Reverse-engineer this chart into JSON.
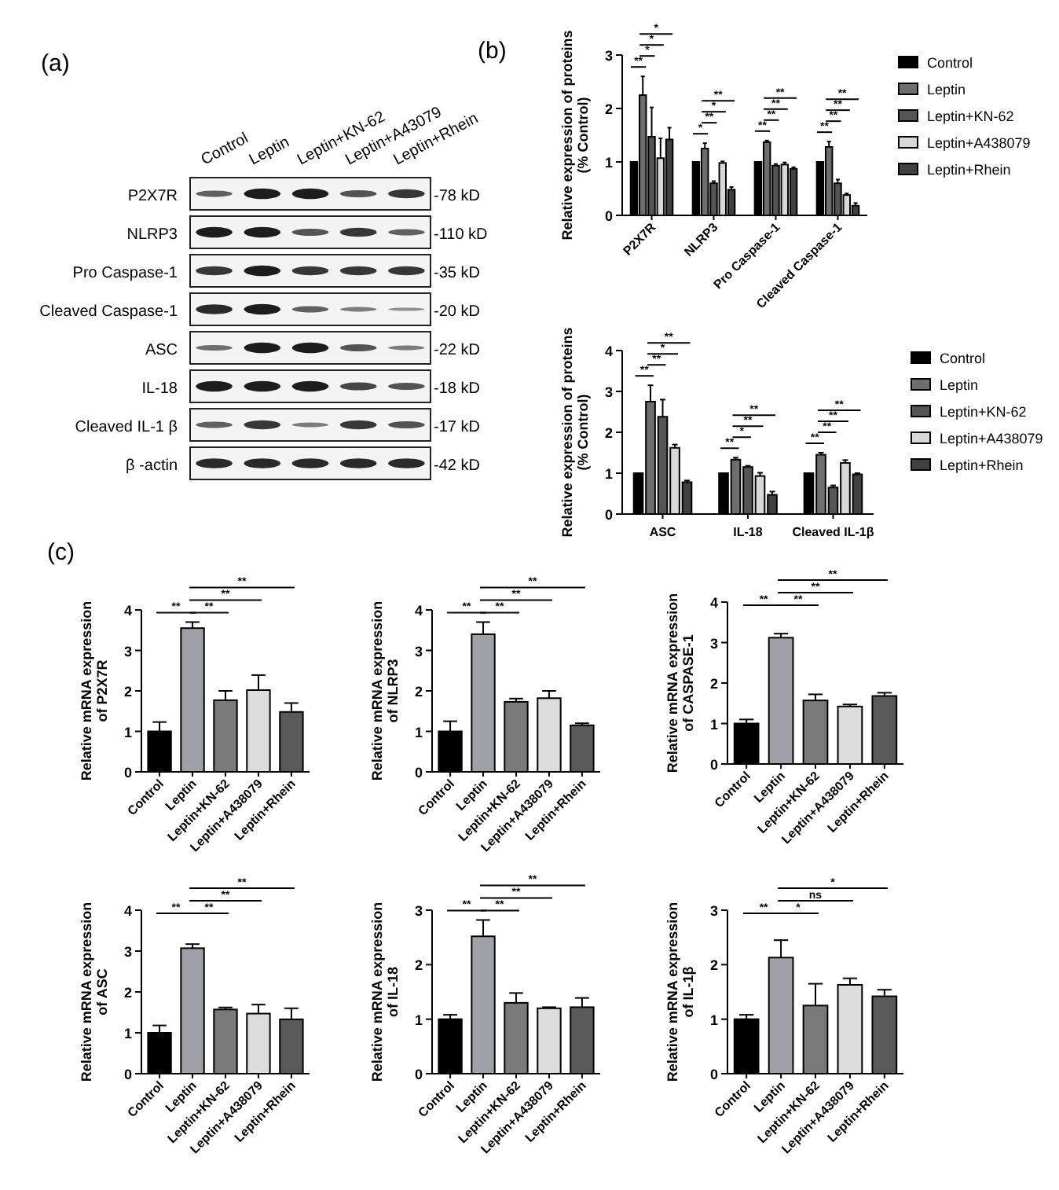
{
  "chart_data": [
    {
      "type": "other",
      "title": "(a)",
      "categories": [
        "Control",
        "Leptin",
        "Leptin+KN-62",
        "Leptin+A43079",
        "Leptin+Rhein"
      ],
      "y_categories": [
        "P2X7R",
        "NLRP3",
        "Pro Caspase-1",
        "Cleaved Caspase-1",
        "ASC",
        "IL-18",
        "Cleaved IL-1 β",
        "β -actin"
      ],
      "y2_categories": [
        "-78 kD",
        "-110 kD",
        "-35 kD",
        "-20 kD",
        "-22 kD",
        "-18 kD",
        "-17 kD",
        "-42 kD"
      ]
    },
    {
      "type": "bar",
      "title": "(b)",
      "ylabel": "Relative expression of proteins\n(% Control)",
      "categories": [
        "P2X7R",
        "NLRP3",
        "Pro Caspase-1",
        "Cleaved  Caspase-1"
      ],
      "ylim": [
        0,
        3
      ],
      "yticks": [
        0,
        1,
        2,
        3
      ],
      "legend": "right",
      "series": [
        {
          "name": "Control",
          "color": "#000000",
          "values": [
            1,
            1,
            1,
            1
          ]
        },
        {
          "name": "Leptin",
          "color": "#6e6e6e",
          "values": [
            2.25,
            1.25,
            1.37,
            1.28
          ],
          "errors": [
            0.35,
            0.1,
            0.03,
            0.1
          ]
        },
        {
          "name": "Leptin+KN-62",
          "color": "#555555",
          "values": [
            1.47,
            0.6,
            0.93,
            0.6
          ],
          "errors": [
            0.55,
            0.04,
            0.03,
            0.07
          ]
        },
        {
          "name": "Leptin+A438079",
          "color": "#d8d8d8",
          "values": [
            1.07,
            0.98,
            0.95,
            0.38
          ],
          "errors": [
            0.37,
            0.03,
            0.04,
            0.03
          ]
        },
        {
          "name": "Leptin+Rhein",
          "color": "#404040",
          "values": [
            1.42,
            0.48,
            0.87,
            0.18
          ],
          "errors": [
            0.22,
            0.05,
            0.03,
            0.05
          ]
        }
      ],
      "annotations": [
        "**",
        "*",
        "*",
        "*",
        "*",
        "**",
        "*",
        "**",
        "**",
        "**",
        "**",
        "**",
        "**",
        "**",
        "**",
        "**"
      ]
    },
    {
      "type": "bar",
      "ylabel": "Relative expression of proteins\n(% Control)",
      "categories": [
        "ASC",
        "IL-18",
        "Cleaved IL-1β"
      ],
      "ylim": [
        0,
        4
      ],
      "yticks": [
        0,
        1,
        2,
        3,
        4
      ],
      "legend": "right",
      "series": [
        {
          "name": "Control",
          "color": "#000000",
          "values": [
            1,
            1,
            1
          ]
        },
        {
          "name": "Leptin",
          "color": "#6e6e6e",
          "values": [
            2.75,
            1.33,
            1.45
          ],
          "errors": [
            0.4,
            0.05,
            0.05
          ]
        },
        {
          "name": "Leptin+KN-62",
          "color": "#555555",
          "values": [
            2.38,
            1.15,
            0.65
          ],
          "errors": [
            0.42,
            0.03,
            0.05
          ]
        },
        {
          "name": "Leptin+A438079",
          "color": "#d8d8d8",
          "values": [
            1.62,
            0.93,
            1.25
          ],
          "errors": [
            0.08,
            0.08,
            0.07
          ]
        },
        {
          "name": "Leptin+Rhein",
          "color": "#404040",
          "values": [
            0.78,
            0.47,
            0.97
          ],
          "errors": [
            0.04,
            0.08,
            0.03
          ]
        }
      ],
      "annotations": [
        "**",
        "**",
        "*",
        "**",
        "**",
        "*",
        "**",
        "**",
        "**",
        "**",
        "**",
        "**"
      ]
    },
    {
      "type": "bar",
      "title": "(c)",
      "ylabel": "Relative mRNA expression\nof P2X7R",
      "categories": [
        "Control",
        "Leptin",
        "Leptin+KN-62",
        "Leptin+A438079",
        "Leptin+Rhein"
      ],
      "values": [
        1,
        3.55,
        1.77,
        2.02,
        1.48
      ],
      "errors": [
        0.23,
        0.15,
        0.23,
        0.37,
        0.22
      ],
      "colors": [
        "#000000",
        "#a0a0a8",
        "#7a7a7a",
        "#dcdcdc",
        "#5a5a5a"
      ],
      "ylim": [
        0,
        4
      ],
      "yticks": [
        0,
        1,
        2,
        3,
        4
      ],
      "annotations": [
        "**",
        "**",
        "**",
        "**"
      ]
    },
    {
      "type": "bar",
      "ylabel": "Relative mRNA expression\nof  NLRP3",
      "categories": [
        "Control",
        "Leptin",
        "Leptin+KN-62",
        "Leptin+A438079",
        "Leptin+Rhein"
      ],
      "values": [
        1,
        3.4,
        1.73,
        1.82,
        1.15
      ],
      "errors": [
        0.25,
        0.3,
        0.08,
        0.18,
        0.05
      ],
      "colors": [
        "#000000",
        "#a0a0a8",
        "#7a7a7a",
        "#dcdcdc",
        "#5a5a5a"
      ],
      "ylim": [
        0,
        4
      ],
      "yticks": [
        0,
        1,
        2,
        3,
        4
      ],
      "annotations": [
        "**",
        "**",
        "**",
        "**"
      ]
    },
    {
      "type": "bar",
      "ylabel": "Relative mRNA expression\nof  CASPASE-1",
      "categories": [
        "Control",
        "Leptin",
        "Leptin+KN-62",
        "Leptin+A438079",
        "Leptin+Rhein"
      ],
      "values": [
        1,
        3.12,
        1.57,
        1.42,
        1.68
      ],
      "errors": [
        0.1,
        0.1,
        0.15,
        0.05,
        0.08
      ],
      "colors": [
        "#000000",
        "#a0a0a8",
        "#7a7a7a",
        "#dcdcdc",
        "#5a5a5a"
      ],
      "ylim": [
        0,
        4
      ],
      "yticks": [
        0,
        1,
        2,
        3,
        4
      ],
      "annotations": [
        "**",
        "**",
        "**",
        "**"
      ]
    },
    {
      "type": "bar",
      "ylabel": "Relative mRNA expression\nof  ASC",
      "categories": [
        "Control",
        "Leptin",
        "Leptin+KN-62",
        "Leptin+A438079",
        "Leptin+Rhein"
      ],
      "values": [
        1,
        3.07,
        1.57,
        1.47,
        1.33
      ],
      "errors": [
        0.18,
        0.1,
        0.05,
        0.22,
        0.27
      ],
      "colors": [
        "#000000",
        "#a0a0a8",
        "#7a7a7a",
        "#dcdcdc",
        "#5a5a5a"
      ],
      "ylim": [
        0,
        4
      ],
      "yticks": [
        0,
        1,
        2,
        3,
        4
      ],
      "annotations": [
        "**",
        "**",
        "**",
        "**"
      ]
    },
    {
      "type": "bar",
      "ylabel": "Relative mRNA expression\nof IL-18",
      "categories": [
        "Control",
        "Leptin",
        "Leptin+KN-62",
        "Leptin+A438079",
        "Leptin+Rhein"
      ],
      "values": [
        1,
        2.52,
        1.3,
        1.2,
        1.22
      ],
      "errors": [
        0.08,
        0.3,
        0.18,
        0.02,
        0.17
      ],
      "colors": [
        "#000000",
        "#a0a0a8",
        "#7a7a7a",
        "#dcdcdc",
        "#5a5a5a"
      ],
      "ylim": [
        0,
        3
      ],
      "yticks": [
        0,
        1,
        2,
        3
      ],
      "annotations": [
        "**",
        "**",
        "**",
        "**"
      ]
    },
    {
      "type": "bar",
      "ylabel": "Relative mRNA expression\nof IL-1β",
      "categories": [
        "Control",
        "Leptin",
        "Leptin+KN-62",
        "Leptin+A438079",
        "Leptin+Rhein"
      ],
      "values": [
        1,
        2.13,
        1.25,
        1.63,
        1.42
      ],
      "errors": [
        0.08,
        0.32,
        0.4,
        0.12,
        0.12
      ],
      "colors": [
        "#000000",
        "#a0a0a8",
        "#7a7a7a",
        "#dcdcdc",
        "#5a5a5a"
      ],
      "ylim": [
        0,
        3
      ],
      "yticks": [
        0,
        1,
        2,
        3
      ],
      "annotations": [
        "**",
        "*",
        "ns",
        "*"
      ]
    }
  ]
}
